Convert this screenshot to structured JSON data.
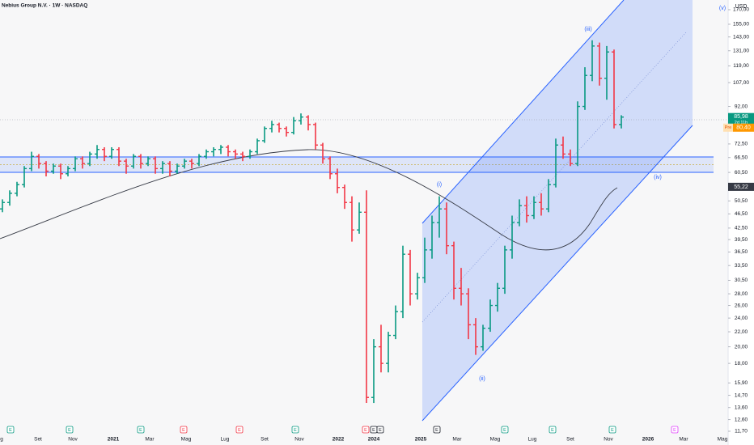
{
  "chart_data": {
    "type": "ohlc",
    "title": "Nebius Group N.V. · 1W · NASDAQ",
    "currency": "USD",
    "log_scale": true,
    "up_color": "#089981",
    "down_color": "#f23645",
    "ylim": [
      11.7,
      170
    ],
    "yticks": [
      {
        "value": 170,
        "label": "170,00"
      },
      {
        "value": 155,
        "label": "155,00"
      },
      {
        "value": 143,
        "label": "143,00"
      },
      {
        "value": 131,
        "label": "131,00"
      },
      {
        "value": 119,
        "label": "119,00"
      },
      {
        "value": 107,
        "label": "107,00"
      },
      {
        "value": 92,
        "label": "92,00"
      },
      {
        "value": 72.5,
        "label": "72,50"
      },
      {
        "value": 66.5,
        "label": "66,50"
      },
      {
        "value": 60.5,
        "label": "60,50"
      },
      {
        "value": 50.5,
        "label": "50,50"
      },
      {
        "value": 46.5,
        "label": "46,50"
      },
      {
        "value": 42.5,
        "label": "42,50"
      },
      {
        "value": 39.5,
        "label": "39,50"
      },
      {
        "value": 36.5,
        "label": "36,50"
      },
      {
        "value": 33.5,
        "label": "33,50"
      },
      {
        "value": 30.5,
        "label": "30,50"
      },
      {
        "value": 28,
        "label": "28,00"
      },
      {
        "value": 26,
        "label": "26,00"
      },
      {
        "value": 24,
        "label": "24,00"
      },
      {
        "value": 22,
        "label": "22,00"
      },
      {
        "value": 20,
        "label": "20,00"
      },
      {
        "value": 18,
        "label": "18,00"
      },
      {
        "value": 15.9,
        "label": "15,90"
      },
      {
        "value": 14.7,
        "label": "14,70"
      },
      {
        "value": 13.6,
        "label": "13,60"
      },
      {
        "value": 12.6,
        "label": "12,60"
      },
      {
        "value": 11.7,
        "label": "11,70"
      }
    ],
    "x_labels": [
      "g",
      "Set",
      "Nov",
      "2021",
      "Mar",
      "Mag",
      "Lug",
      "Set",
      "Nov",
      "2022",
      "2024",
      "2025",
      "Mar",
      "Mag",
      "Lug",
      "Set",
      "Nov",
      "2026",
      "Mar",
      "Mag"
    ],
    "ohlc": [
      [
        48,
        51,
        47,
        50
      ],
      [
        50,
        54,
        49,
        53
      ],
      [
        53,
        57,
        52,
        56
      ],
      [
        56,
        63,
        55,
        62
      ],
      [
        62,
        69,
        61,
        67
      ],
      [
        67,
        68,
        62,
        64
      ],
      [
        64,
        65,
        59,
        61
      ],
      [
        61,
        64,
        60,
        63
      ],
      [
        63,
        64,
        58,
        60
      ],
      [
        60,
        63,
        59,
        62
      ],
      [
        62,
        67,
        61,
        66
      ],
      [
        66,
        67,
        62,
        64
      ],
      [
        64,
        69,
        63,
        68
      ],
      [
        68,
        72,
        66,
        70
      ],
      [
        70,
        71,
        65,
        67
      ],
      [
        67,
        71,
        66,
        70
      ],
      [
        70,
        71,
        63,
        65
      ],
      [
        65,
        66,
        60,
        63
      ],
      [
        63,
        68,
        62,
        67
      ],
      [
        67,
        68,
        62,
        64
      ],
      [
        64,
        67,
        63,
        66
      ],
      [
        66,
        67,
        60,
        62
      ],
      [
        62,
        65,
        60,
        64
      ],
      [
        64,
        65,
        59,
        61
      ],
      [
        61,
        64,
        60,
        63
      ],
      [
        63,
        66,
        62,
        65
      ],
      [
        65,
        66,
        62,
        64
      ],
      [
        64,
        68,
        63,
        67
      ],
      [
        67,
        70,
        66,
        69
      ],
      [
        69,
        71,
        67,
        70
      ],
      [
        70,
        72,
        68,
        71
      ],
      [
        71,
        72,
        67,
        69
      ],
      [
        69,
        70,
        66,
        68
      ],
      [
        68,
        69,
        65,
        67
      ],
      [
        67,
        70,
        66,
        69
      ],
      [
        69,
        75,
        68,
        74
      ],
      [
        74,
        81,
        73,
        80
      ],
      [
        80,
        84,
        78,
        82
      ],
      [
        82,
        83,
        78,
        80
      ],
      [
        80,
        81,
        76,
        78
      ],
      [
        78,
        86,
        77,
        84
      ],
      [
        84,
        88,
        82,
        86
      ],
      [
        86,
        87,
        79,
        82
      ],
      [
        82,
        83,
        70,
        72
      ],
      [
        72,
        73,
        64,
        66
      ],
      [
        66,
        67,
        58,
        60
      ],
      [
        60,
        62,
        53,
        55
      ],
      [
        55,
        56,
        48,
        50
      ],
      [
        50,
        52,
        39,
        42
      ],
      [
        42,
        50,
        41,
        47
      ],
      [
        47,
        54,
        14,
        14.5
      ],
      [
        14.5,
        21,
        14,
        20
      ],
      [
        20,
        23,
        17,
        18
      ],
      [
        18,
        22,
        17,
        21.5
      ],
      [
        21.5,
        26,
        21,
        25
      ],
      [
        25,
        38,
        24,
        36
      ],
      [
        36,
        37,
        26,
        28
      ],
      [
        28,
        32,
        27,
        31
      ],
      [
        31,
        40,
        30,
        37
      ],
      [
        37,
        46,
        35,
        44
      ],
      [
        44,
        52,
        40,
        48
      ],
      [
        48,
        50,
        36,
        38
      ],
      [
        38,
        39,
        27,
        29
      ],
      [
        29,
        33,
        26,
        28
      ],
      [
        28,
        29,
        21,
        23
      ],
      [
        23,
        24,
        19,
        20
      ],
      [
        20,
        23,
        19.5,
        22.5
      ],
      [
        22.5,
        27,
        22,
        26
      ],
      [
        26,
        30,
        25,
        29
      ],
      [
        29,
        38,
        28,
        37
      ],
      [
        37,
        46,
        35,
        44
      ],
      [
        44,
        51,
        43,
        49
      ],
      [
        49,
        52,
        44,
        46
      ],
      [
        46,
        52,
        45,
        50
      ],
      [
        50,
        53,
        46,
        48
      ],
      [
        48,
        58,
        47,
        56
      ],
      [
        56,
        75,
        55,
        72
      ],
      [
        72,
        76,
        66,
        68
      ],
      [
        68,
        70,
        63,
        64
      ],
      [
        64,
        95,
        63,
        92
      ],
      [
        92,
        118,
        90,
        112
      ],
      [
        112,
        140,
        108,
        135
      ],
      [
        135,
        138,
        105,
        110
      ],
      [
        110,
        135,
        96,
        130
      ],
      [
        130,
        132,
        80,
        82
      ],
      [
        82,
        87,
        80,
        85.98
      ]
    ],
    "last_price": {
      "value": 85.98,
      "label": "85,98",
      "countdown": "2d 11h"
    },
    "premarket": {
      "tag": "Pre",
      "value": 80.4,
      "label": "80,40"
    },
    "moving_average": {
      "value": 55.22,
      "label": "55,22"
    },
    "annotations": [
      "(i)",
      "(ii)",
      "(iii)",
      "(iv)",
      "(v)"
    ],
    "events": [
      {
        "label": "E",
        "color": "#089981"
      },
      {
        "label": "E",
        "color": "#089981"
      },
      {
        "label": "E",
        "color": "#089981"
      },
      {
        "label": "E",
        "color": "#f23645"
      },
      {
        "label": "E",
        "color": "#f23645"
      },
      {
        "label": "E",
        "color": "#089981"
      },
      {
        "label": "E",
        "color": "#f23645"
      },
      {
        "label": "E",
        "color": "#131722"
      },
      {
        "label": "E",
        "color": "#131722"
      },
      {
        "label": "E",
        "color": "#131722"
      },
      {
        "label": "E",
        "color": "#089981"
      },
      {
        "label": "E",
        "color": "#089981"
      },
      {
        "label": "E",
        "color": "#089981"
      },
      {
        "label": "E",
        "color": "#e040fb"
      }
    ]
  }
}
